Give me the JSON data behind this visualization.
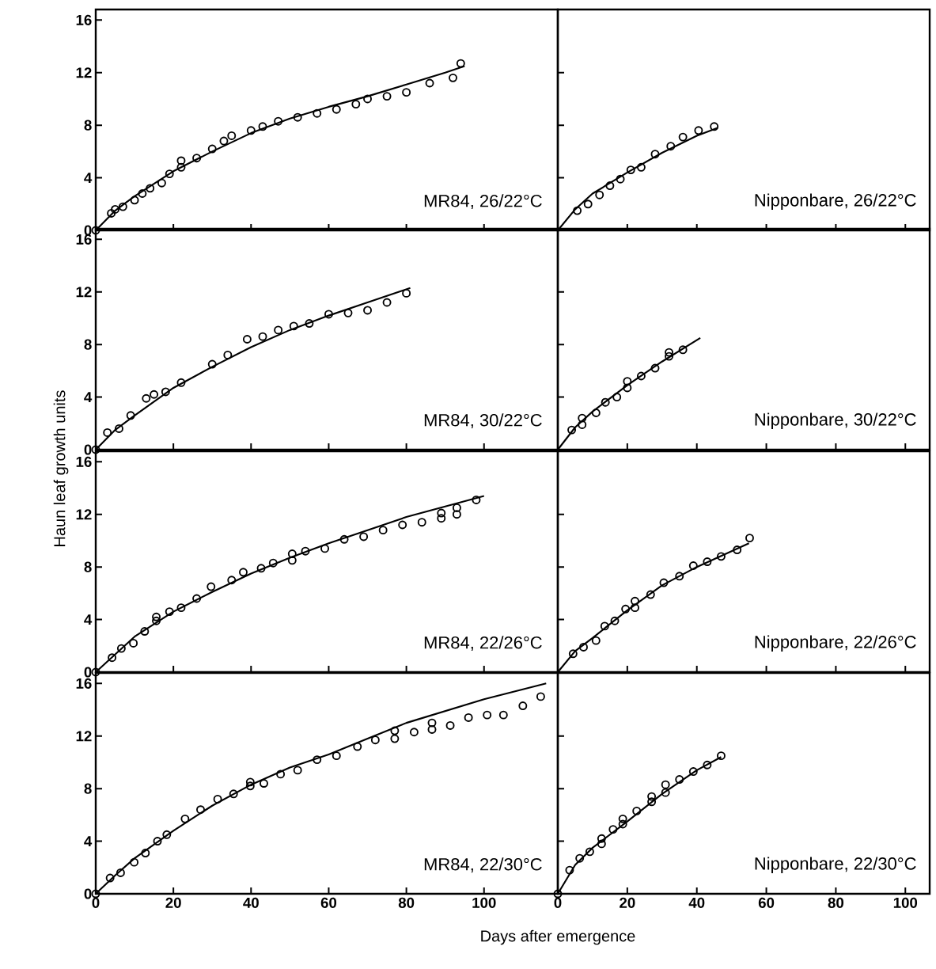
{
  "chart_data": [
    {
      "type": "scatter",
      "annotations": [
        "MR84, 26/22°C"
      ],
      "xlim": [
        0,
        119
      ],
      "ylim": [
        0,
        16.8
      ],
      "xticks": [
        0,
        20,
        40,
        60,
        80,
        100
      ],
      "yticks": [
        0,
        4,
        8,
        12,
        16
      ],
      "tick_labels": "y",
      "series": [
        {
          "marker": "circle",
          "color": "#000000",
          "x": [
            0,
            4,
            5,
            7,
            10,
            12,
            14,
            17,
            19,
            22,
            22,
            26,
            30,
            33,
            35,
            40,
            43,
            47,
            52,
            57,
            62,
            67,
            70,
            75,
            80,
            86,
            92,
            94
          ],
          "values": [
            0,
            1.3,
            1.6,
            1.8,
            2.3,
            2.8,
            3.2,
            3.6,
            4.3,
            4.8,
            5.3,
            5.5,
            6.2,
            6.8,
            7.2,
            7.6,
            7.9,
            8.3,
            8.6,
            8.9,
            9.2,
            9.6,
            10.0,
            10.2,
            10.5,
            11.2,
            11.6,
            12.7
          ]
        },
        {
          "type": "line",
          "line_style": "solid",
          "color": "#000000",
          "x": [
            0,
            5,
            10,
            20,
            30,
            40,
            50,
            60,
            70,
            80,
            90,
            95
          ],
          "values": [
            0,
            1.5,
            2.6,
            4.5,
            6.0,
            7.4,
            8.5,
            9.4,
            10.2,
            11.1,
            12.0,
            12.5
          ]
        }
      ]
    },
    {
      "type": "scatter",
      "annotations": [
        "Nipponbare, 26/22°C"
      ],
      "xlim": [
        0,
        107
      ],
      "ylim": [
        0,
        16.8
      ],
      "xticks": [
        0,
        20,
        40,
        60,
        80,
        100
      ],
      "yticks": [
        {
          "value": 4,
          "label": null
        },
        {
          "value": 8,
          "label": null
        },
        {
          "value": 12,
          "label": null
        }
      ],
      "tick_labels": false,
      "series": [
        {
          "marker": "circle",
          "color": "#000000",
          "x": [
            5.6,
            8.7,
            12,
            15,
            18,
            21,
            24,
            28,
            32.5,
            36,
            40.5,
            45
          ],
          "values": [
            1.5,
            2.0,
            2.7,
            3.4,
            3.9,
            4.6,
            4.8,
            5.8,
            6.4,
            7.1,
            7.6,
            7.9
          ]
        },
        {
          "type": "line",
          "line_style": "solid",
          "color": "#000000",
          "x": [
            0,
            5,
            10,
            20,
            30,
            40,
            46
          ],
          "values": [
            0,
            1.6,
            2.8,
            4.4,
            5.9,
            7.2,
            7.8
          ]
        }
      ]
    },
    {
      "type": "scatter",
      "ylabel": "Haun leaf growth units",
      "annotations": [
        "MR84, 30/22°C"
      ],
      "xlim": [
        0,
        119
      ],
      "ylim": [
        0,
        16.8
      ],
      "xticks": [
        0,
        20,
        40,
        60,
        80,
        100
      ],
      "yticks": [
        0,
        4,
        8,
        12,
        16
      ],
      "tick_labels": "y",
      "series": [
        {
          "marker": "circle",
          "color": "#000000",
          "x": [
            0,
            3,
            6,
            9,
            13,
            15,
            18,
            22,
            30,
            34,
            39,
            43,
            47,
            51,
            55,
            60,
            65,
            70,
            75,
            80
          ],
          "values": [
            0,
            1.3,
            1.6,
            2.6,
            3.9,
            4.2,
            4.4,
            5.1,
            6.5,
            7.2,
            8.4,
            8.6,
            9.1,
            9.4,
            9.6,
            10.3,
            10.4,
            10.6,
            11.2,
            11.9
          ]
        },
        {
          "type": "line",
          "line_style": "solid",
          "color": "#000000",
          "x": [
            0,
            5,
            10,
            20,
            30,
            40,
            50,
            60,
            70,
            81
          ],
          "values": [
            0,
            1.5,
            2.6,
            4.7,
            6.3,
            7.8,
            9.1,
            10.2,
            11.2,
            12.3
          ]
        }
      ]
    },
    {
      "type": "scatter",
      "annotations": [
        "Nipponbare, 30/22°C"
      ],
      "xlim": [
        0,
        107
      ],
      "ylim": [
        0,
        16.8
      ],
      "xticks": [
        0,
        20,
        40,
        60,
        80,
        100
      ],
      "yticks": [
        {
          "value": 4,
          "label": null
        },
        {
          "value": 8,
          "label": null
        },
        {
          "value": 12,
          "label": null
        }
      ],
      "tick_labels": false,
      "series": [
        {
          "marker": "circle",
          "color": "#000000",
          "x": [
            4,
            7,
            7,
            11,
            13.7,
            17,
            20,
            20,
            24,
            28,
            32,
            32,
            36
          ],
          "values": [
            1.5,
            1.9,
            2.4,
            2.8,
            3.6,
            4.0,
            4.7,
            5.2,
            5.6,
            6.2,
            7.1,
            7.4,
            7.6
          ]
        },
        {
          "type": "line",
          "line_style": "solid",
          "color": "#000000",
          "x": [
            0,
            5,
            10,
            20,
            30,
            41
          ],
          "values": [
            0,
            1.7,
            2.9,
            4.9,
            6.7,
            8.5
          ]
        }
      ]
    },
    {
      "type": "scatter",
      "annotations": [
        "MR84, 22/26°C"
      ],
      "xlim": [
        0,
        119
      ],
      "ylim": [
        0,
        16.8
      ],
      "xticks": [
        0,
        20,
        40,
        60,
        80,
        100
      ],
      "yticks": [
        0,
        4,
        8,
        12,
        16
      ],
      "tick_labels": "y",
      "series": [
        {
          "marker": "circle",
          "color": "#000000",
          "x": [
            0,
            4.2,
            6.6,
            9.7,
            12.6,
            15.6,
            15.6,
            19,
            22,
            26,
            29.7,
            35,
            38,
            42.6,
            45.7,
            50.6,
            50.6,
            54,
            59,
            64,
            69,
            74,
            79,
            84,
            89,
            89,
            93,
            93,
            98
          ],
          "values": [
            0,
            1.1,
            1.8,
            2.2,
            3.1,
            3.9,
            4.2,
            4.6,
            4.9,
            5.6,
            6.5,
            7.0,
            7.6,
            7.9,
            8.3,
            8.5,
            9.0,
            9.2,
            9.4,
            10.1,
            10.3,
            10.8,
            11.2,
            11.4,
            11.7,
            12.1,
            12.0,
            12.5,
            13.1
          ]
        },
        {
          "type": "line",
          "line_style": "solid",
          "color": "#000000",
          "x": [
            0,
            10,
            20,
            30,
            40,
            50,
            60,
            70,
            80,
            90,
            100
          ],
          "values": [
            0,
            2.7,
            4.6,
            6.1,
            7.5,
            8.7,
            9.8,
            10.8,
            11.8,
            12.6,
            13.4
          ]
        }
      ]
    },
    {
      "type": "scatter",
      "annotations": [
        "Nipponbare, 22/26°C"
      ],
      "xlim": [
        0,
        107
      ],
      "ylim": [
        0,
        16.8
      ],
      "xticks": [
        0,
        20,
        40,
        60,
        80,
        100
      ],
      "yticks": [
        {
          "value": 4,
          "label": null
        },
        {
          "value": 8,
          "label": null
        },
        {
          "value": 12,
          "label": null
        }
      ],
      "tick_labels": false,
      "series": [
        {
          "marker": "circle",
          "color": "#000000",
          "x": [
            4.4,
            7.4,
            11,
            13.5,
            16.4,
            19.5,
            22.2,
            22.2,
            26.7,
            30.5,
            35,
            39,
            43,
            47,
            51.6,
            55.2
          ],
          "values": [
            1.4,
            1.9,
            2.4,
            3.5,
            3.9,
            4.8,
            5.4,
            4.9,
            5.9,
            6.8,
            7.3,
            8.1,
            8.4,
            8.8,
            9.3,
            10.2
          ]
        },
        {
          "type": "line",
          "line_style": "solid",
          "color": "#000000",
          "x": [
            0,
            5,
            10,
            20,
            30,
            40,
            50,
            55
          ],
          "values": [
            0,
            1.6,
            2.6,
            4.7,
            6.6,
            8.0,
            9.2,
            9.8
          ]
        }
      ]
    },
    {
      "type": "scatter",
      "xlabel": "Days after emergence",
      "annotations": [
        "MR84, 22/30°C"
      ],
      "xlim": [
        0,
        119
      ],
      "ylim": [
        0,
        16.8
      ],
      "xticks": [
        0,
        20,
        40,
        60,
        80,
        100
      ],
      "yticks": [
        0,
        4,
        8,
        12,
        16
      ],
      "series": [
        {
          "marker": "circle",
          "color": "#000000",
          "x": [
            0,
            3.7,
            6.4,
            9.9,
            12.8,
            15.9,
            18.3,
            23,
            27,
            31.4,
            35.5,
            39.8,
            39.8,
            43.3,
            47.6,
            52,
            57,
            62,
            67.4,
            72,
            77,
            77,
            82,
            86.6,
            86.6,
            91.3,
            96,
            100.8,
            105,
            110,
            114.6
          ],
          "values": [
            0,
            1.2,
            1.6,
            2.4,
            3.1,
            4.0,
            4.5,
            5.7,
            6.4,
            7.2,
            7.6,
            8.2,
            8.5,
            8.4,
            9.1,
            9.4,
            10.2,
            10.5,
            11.2,
            11.7,
            11.8,
            12.4,
            12.3,
            12.5,
            13.0,
            12.8,
            13.4,
            13.6,
            13.6,
            14.3,
            15.0
          ]
        },
        {
          "type": "line",
          "line_style": "solid",
          "color": "#000000",
          "x": [
            0,
            5,
            10,
            20,
            30,
            40,
            50,
            60,
            70,
            80,
            90,
            100,
            116
          ],
          "values": [
            0,
            1.4,
            2.7,
            4.8,
            6.7,
            8.3,
            9.6,
            10.6,
            11.8,
            13.0,
            13.9,
            14.8,
            16.0
          ]
        }
      ]
    },
    {
      "type": "scatter",
      "annotations": [
        "Nipponbare, 22/30°C"
      ],
      "xlim": [
        0,
        107
      ],
      "ylim": [
        0,
        16.8
      ],
      "xticks": [
        0,
        20,
        40,
        60,
        80,
        100
      ],
      "yticks": [
        {
          "value": 4,
          "label": null
        },
        {
          "value": 8,
          "label": null
        },
        {
          "value": 12,
          "label": null
        }
      ],
      "tick_labels": "x",
      "series": [
        {
          "marker": "circle",
          "color": "#000000",
          "x": [
            0,
            3.4,
            6.3,
            9.2,
            12.6,
            12.6,
            15.9,
            18.7,
            18.7,
            22.7,
            27,
            27,
            31,
            31,
            35,
            39,
            43,
            47
          ],
          "values": [
            0,
            1.8,
            2.7,
            3.2,
            4.2,
            3.8,
            4.9,
            5.7,
            5.3,
            6.3,
            7.4,
            7.0,
            8.3,
            7.7,
            8.7,
            9.3,
            9.8,
            10.5
          ]
        },
        {
          "type": "line",
          "line_style": "solid",
          "color": "#000000",
          "x": [
            0,
            5,
            10,
            20,
            30,
            40,
            47
          ],
          "values": [
            0,
            2.2,
            3.5,
            5.5,
            7.6,
            9.4,
            10.4
          ]
        }
      ]
    }
  ]
}
